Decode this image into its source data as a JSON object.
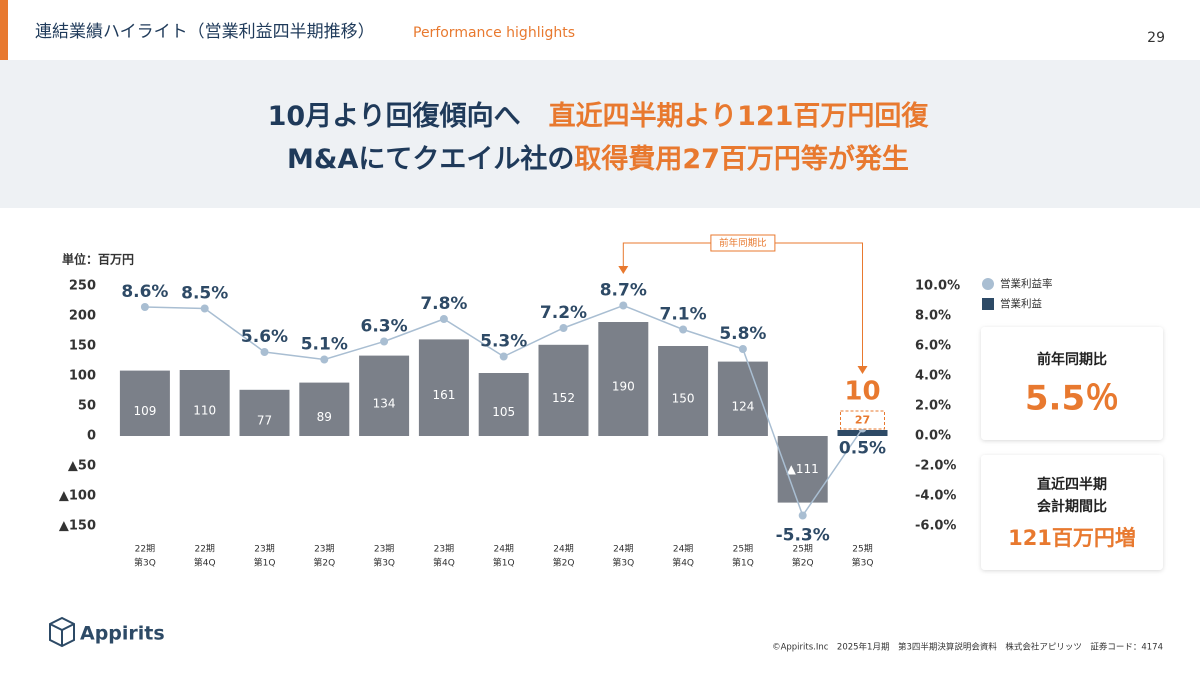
{
  "header": {
    "title": "連結業績ハイライト（営業利益四半期推移）",
    "subtitle": "Performance highlights",
    "page": "29"
  },
  "headline": {
    "lines": [
      [
        {
          "text": "10月より回復傾向へ",
          "color": "#1f3a5a"
        },
        {
          "text": "直近四半期より121百万円回復",
          "color": "#e8792f"
        }
      ],
      [
        {
          "text": "M&Aにてクエイル社の",
          "color": "#1f3a5a"
        },
        {
          "text": "取得費用27百万円等が発生",
          "color": "#e8792f"
        }
      ]
    ]
  },
  "chart_data": {
    "type": "combo",
    "unit_label": "単位：百万円",
    "categories": [
      [
        "22期",
        "第3Q"
      ],
      [
        "22期",
        "第4Q"
      ],
      [
        "23期",
        "第1Q"
      ],
      [
        "23期",
        "第2Q"
      ],
      [
        "23期",
        "第3Q"
      ],
      [
        "23期",
        "第4Q"
      ],
      [
        "24期",
        "第1Q"
      ],
      [
        "24期",
        "第2Q"
      ],
      [
        "24期",
        "第3Q"
      ],
      [
        "24期",
        "第4Q"
      ],
      [
        "25期",
        "第1Q"
      ],
      [
        "25期",
        "第2Q"
      ],
      [
        "25期",
        "第3Q"
      ]
    ],
    "series": [
      {
        "name": "営業利益率",
        "type": "line",
        "axis": "y2",
        "color": "#a9bed2",
        "values": [
          8.6,
          8.5,
          5.6,
          5.1,
          6.3,
          7.8,
          5.3,
          7.2,
          8.7,
          7.1,
          5.8,
          -5.3,
          0.5
        ],
        "value_labels": [
          "8.6%",
          "8.5%",
          "5.6%",
          "5.1%",
          "6.3%",
          "7.8%",
          "5.3%",
          "7.2%",
          "8.7%",
          "7.1%",
          "5.8%",
          "-5.3%",
          "0.5%"
        ]
      },
      {
        "name": "営業利益",
        "type": "bar",
        "color": "#2d4a66",
        "colors": [
          "#7b8089",
          "#7b8089",
          "#7b8089",
          "#7b8089",
          "#7b8089",
          "#7b8089",
          "#7b8089",
          "#7b8089",
          "#7b8089",
          "#7b8089",
          "#7b8089",
          "#7b8089",
          "#2d4a66"
        ],
        "values": [
          109,
          110,
          77,
          89,
          134,
          161,
          105,
          152,
          190,
          150,
          124,
          -111,
          10
        ],
        "value_labels": [
          "109",
          "110",
          "77",
          "89",
          "134",
          "161",
          "105",
          "152",
          "190",
          "150",
          "124",
          "▲111",
          "10"
        ]
      }
    ],
    "ylim": [
      -150,
      250
    ],
    "yticks": [
      250,
      200,
      150,
      100,
      50,
      0,
      {
        "value": -50,
        "label": "▲50"
      },
      {
        "value": -100,
        "label": "▲100"
      },
      {
        "value": -150,
        "label": "▲150"
      }
    ],
    "y2lim": [
      -6,
      10
    ],
    "y2ticks": [
      {
        "value": 10,
        "label": "10.0%"
      },
      {
        "value": 8,
        "label": "8.0%"
      },
      {
        "value": 6,
        "label": "6.0%"
      },
      {
        "value": 4,
        "label": "4.0%"
      },
      {
        "value": 2,
        "label": "2.0%"
      },
      {
        "value": 0,
        "label": "0.0%"
      },
      {
        "value": -2,
        "label": "-2.0%"
      },
      {
        "value": -4,
        "label": "-4.0%"
      },
      {
        "value": -6,
        "label": "-6.0%"
      }
    ],
    "annotations": [
      {
        "text": "前年同期比"
      },
      {
        "text": "27"
      }
    ]
  },
  "kpis": [
    {
      "label": [
        "前年同期比"
      ],
      "value": "5.5％"
    },
    {
      "label": [
        "直近四半期",
        "会計期間比"
      ],
      "value": "121百万円増"
    }
  ],
  "footer": {
    "logo": "Appirits",
    "note": "©Appirits.Inc　2025年1月期　第3四半期決算説明会資料　株式会社アピリッツ　証券コード：4174"
  }
}
